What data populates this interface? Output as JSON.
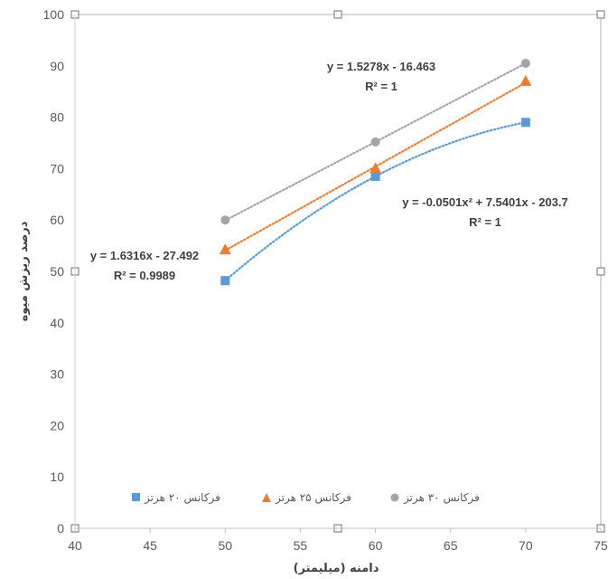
{
  "chart_data": {
    "type": "scatter",
    "xlabel": "دامنه (میلیمتر)",
    "ylabel": "درصد ریزش میوه",
    "xlim": [
      40,
      75
    ],
    "ylim": [
      0,
      100
    ],
    "x_ticks": [
      "40",
      "45",
      "50",
      "55",
      "60",
      "65",
      "70",
      "75"
    ],
    "y_ticks": [
      "0",
      "10",
      "20",
      "30",
      "40",
      "50",
      "60",
      "70",
      "80",
      "90",
      "100"
    ],
    "grid": false,
    "legend_position": "bottom-inside",
    "series": [
      {
        "name": "فرکانس ۲۰ هرتز",
        "marker": "square",
        "color": "#5B9BD5",
        "x": [
          50,
          60,
          70
        ],
        "y": [
          48.2,
          68.5,
          79
        ],
        "trendline": {
          "type": "polynomial2",
          "equation": "y = -0.0501x² + 7.5401x - 203.7",
          "r2": "R² = 1",
          "coef": [
            -0.0501,
            7.5401,
            -203.7
          ]
        }
      },
      {
        "name": "فرکانس ۲۵ هرتز",
        "marker": "triangle",
        "color": "#ED7D31",
        "x": [
          50,
          60,
          70
        ],
        "y": [
          54.2,
          70,
          87
        ],
        "trendline": {
          "type": "linear",
          "equation": "y = 1.6316x - 27.492",
          "r2": "R² = 0.9989",
          "coef": [
            1.6316,
            -27.492
          ]
        }
      },
      {
        "name": "فرکانس ۳۰ هرتز",
        "marker": "circle",
        "color": "#A5A5A5",
        "x": [
          50,
          60,
          70
        ],
        "y": [
          60,
          75.2,
          90.5
        ],
        "trendline": {
          "type": "linear",
          "equation": "y = 1.5278x - 16.463",
          "r2": "R² = 1",
          "coef": [
            1.5278,
            -16.463
          ]
        }
      }
    ]
  }
}
